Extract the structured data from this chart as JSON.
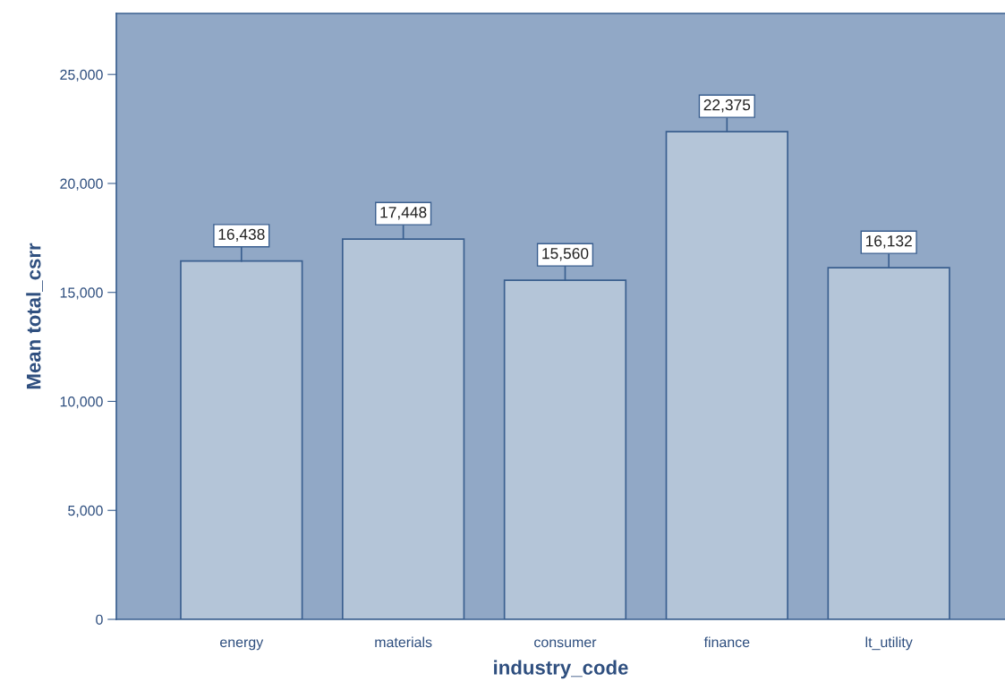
{
  "chart_data": {
    "type": "bar",
    "xlabel": "industry_code",
    "ylabel": "Mean total_csrr",
    "categories": [
      "energy",
      "materials",
      "consumer",
      "finance",
      "lt_utility"
    ],
    "values": [
      16438,
      17448,
      15560,
      22375,
      16132
    ],
    "color": "#b4c5d8",
    "ylim": [
      0,
      27800
    ],
    "yticks": [
      0,
      {
        "value": 5000,
        "label": "5,000"
      },
      {
        "value": 10000,
        "label": "10,000"
      },
      {
        "value": 15000,
        "label": "15,000"
      },
      {
        "value": 20000,
        "label": "20,000"
      },
      {
        "value": 25000,
        "label": "25,000"
      }
    ],
    "value_labels": [
      "16,438",
      "17,448",
      "15,560",
      "22,375",
      "16,132"
    ],
    "grid": false,
    "legend": false
  }
}
